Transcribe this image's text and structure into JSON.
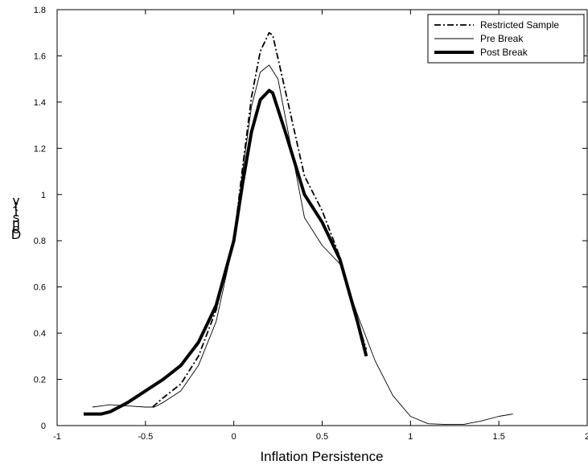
{
  "chart_data": {
    "type": "line",
    "title": "",
    "xlabel": "Inflation Persistence",
    "ylabel": "Density",
    "ylabel_glyphs": [
      "y",
      "t",
      "i",
      "s",
      "n",
      "e",
      "D"
    ],
    "xlim": [
      -1,
      2
    ],
    "ylim": [
      0,
      1.8
    ],
    "xticks": [
      -1,
      -0.5,
      0,
      0.5,
      1,
      1.5,
      2
    ],
    "xtick_labels": [
      "-1",
      "-0.5",
      "0",
      "0.5",
      "1",
      "1.5",
      "2"
    ],
    "yticks": [
      0,
      0.2,
      0.4,
      0.6,
      0.8,
      1,
      1.2,
      1.4,
      1.6,
      1.8
    ],
    "ytick_labels": [
      "0",
      "0.2",
      "0.4",
      "0.6",
      "0.8",
      "1",
      "1.2",
      "1.4",
      "1.6",
      "1.8"
    ],
    "grid": false,
    "legend_position": "top-right",
    "series": [
      {
        "name": "Restricted Sample",
        "style": "dash-dot",
        "color": "#000000",
        "x": [
          -0.46,
          -0.4,
          -0.3,
          -0.2,
          -0.1,
          0,
          0.05,
          0.1,
          0.15,
          0.2,
          0.22,
          0.3,
          0.4,
          0.5,
          0.6,
          0.7,
          0.75
        ],
        "y": [
          0.08,
          0.12,
          0.18,
          0.3,
          0.5,
          0.8,
          1.12,
          1.42,
          1.62,
          1.7,
          1.69,
          1.42,
          1.08,
          0.93,
          0.73,
          0.45,
          0.33
        ]
      },
      {
        "name": "Pre Break",
        "style": "thin",
        "color": "#000000",
        "x": [
          -0.8,
          -0.7,
          -0.6,
          -0.5,
          -0.45,
          -0.4,
          -0.3,
          -0.2,
          -0.1,
          0,
          0.05,
          0.1,
          0.15,
          0.2,
          0.25,
          0.3,
          0.4,
          0.5,
          0.6,
          0.7,
          0.8,
          0.9,
          1.0,
          1.1,
          1.2,
          1.3,
          1.4,
          1.5,
          1.58
        ],
        "y": [
          0.08,
          0.09,
          0.085,
          0.08,
          0.08,
          0.1,
          0.15,
          0.26,
          0.45,
          0.8,
          1.1,
          1.38,
          1.53,
          1.56,
          1.5,
          1.3,
          0.9,
          0.78,
          0.7,
          0.48,
          0.28,
          0.13,
          0.04,
          0.008,
          0.005,
          0.005,
          0.02,
          0.04,
          0.05
        ]
      },
      {
        "name": "Post Break",
        "style": "thick",
        "color": "#000000",
        "x": [
          -0.85,
          -0.75,
          -0.7,
          -0.6,
          -0.5,
          -0.4,
          -0.3,
          -0.2,
          -0.1,
          0,
          0.05,
          0.1,
          0.15,
          0.2,
          0.22,
          0.3,
          0.4,
          0.5,
          0.6,
          0.7,
          0.75
        ],
        "y": [
          0.05,
          0.05,
          0.06,
          0.1,
          0.15,
          0.2,
          0.26,
          0.36,
          0.52,
          0.8,
          1.05,
          1.27,
          1.41,
          1.45,
          1.44,
          1.25,
          1.0,
          0.88,
          0.72,
          0.45,
          0.3
        ]
      }
    ]
  }
}
